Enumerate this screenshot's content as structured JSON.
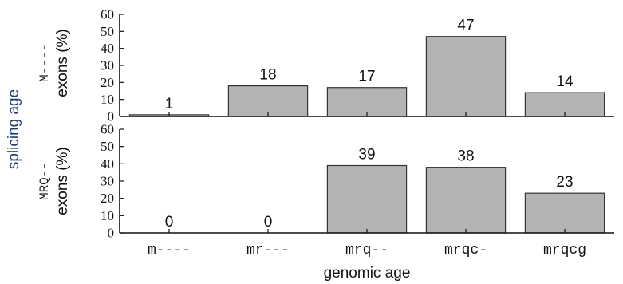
{
  "chart_data": [
    {
      "type": "bar",
      "panel": "top",
      "panel_tag": "M----",
      "ylabel": "exons (%)",
      "ylim": [
        0,
        60
      ],
      "yticks": [
        "0",
        "10",
        "20",
        "30",
        "40",
        "50",
        "60"
      ],
      "categories": [
        "m----",
        "mr---",
        "mrq--",
        "mrqc-",
        "mrqcg"
      ],
      "values": [
        1,
        18,
        17,
        47,
        14
      ],
      "value_labels": [
        "1",
        "18",
        "17",
        "47",
        "14"
      ],
      "grid": false
    },
    {
      "type": "bar",
      "panel": "bottom",
      "panel_tag": "MRQ--",
      "ylabel": "exons (%)",
      "ylim": [
        0,
        60
      ],
      "yticks": [
        "0",
        "10",
        "20",
        "30",
        "40",
        "50",
        "60"
      ],
      "categories": [
        "m----",
        "mr---",
        "mrq--",
        "mrqc-",
        "mrqcg"
      ],
      "values": [
        0,
        0,
        39,
        38,
        23
      ],
      "value_labels": [
        "0",
        "0",
        "39",
        "38",
        "23"
      ],
      "grid": false
    }
  ],
  "shared": {
    "xlabel": "genomic age",
    "group_label": "splicing age"
  },
  "colors": {
    "bar_fill": "#b3b3b3",
    "bar_stroke": "#333333",
    "axis": "#111111",
    "accent": "#1f3f73"
  }
}
